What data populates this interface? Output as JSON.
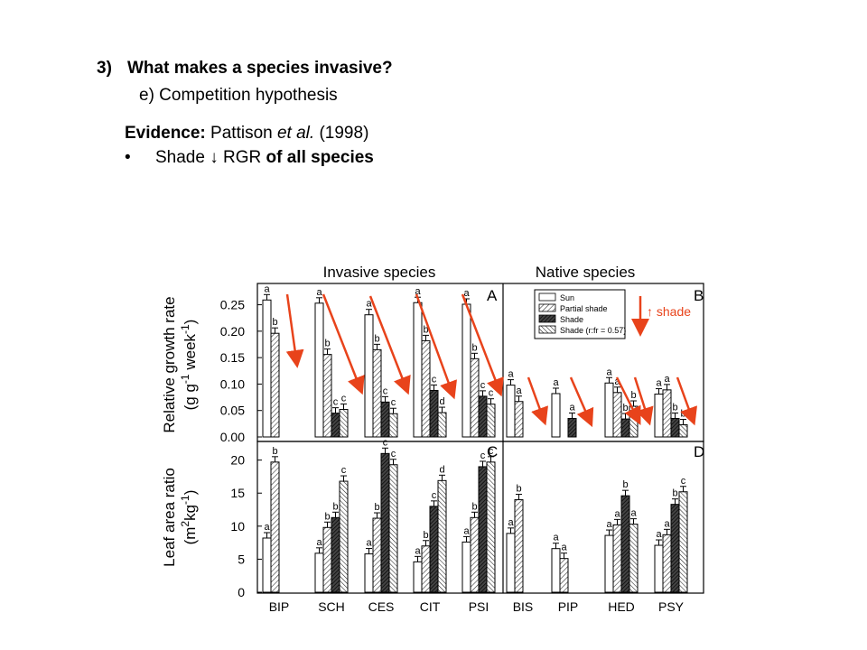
{
  "slide": {
    "heading_number": "3)",
    "heading_text": "What makes a species invasive?",
    "subheading": "e) Competition hypothesis",
    "evidence_label": "Evidence:",
    "evidence_author": "Pattison",
    "evidence_etal": "et al.",
    "evidence_year": "(1998)",
    "bullet_symbol": "•",
    "bullet_pre": "Shade ↓ RGR",
    "bullet_bold": "of all species"
  },
  "figure": {
    "group_invasive": "Invasive species",
    "group_native": "Native species",
    "annotation_shade": "↑ shade",
    "arrow_color": "#e8431b"
  },
  "chart_data": [
    {
      "type": "bar",
      "panel": "A/B",
      "panel_labels": [
        "A",
        "B"
      ],
      "ylabel": "Relative growth rate (g g-1 week-1)",
      "ylabel_line1": "Relative growth rate",
      "ylabel_line2_parts": [
        "(g g",
        "-1",
        " week",
        "-1",
        ")"
      ],
      "ylim": [
        0,
        0.28
      ],
      "yticks": [
        0.0,
        0.05,
        0.1,
        0.15,
        0.2,
        0.25
      ],
      "ytick_labels": [
        "0.00",
        "0.05",
        "0.10",
        "0.15",
        "0.20",
        "0.25"
      ],
      "categories": [
        "BIP",
        "SCH",
        "CES",
        "CIT",
        "PSI",
        "BIS",
        "PIP",
        "HED",
        "PSY"
      ],
      "legend_position": "top-right",
      "series": [
        {
          "name": "Sun",
          "values": [
            0.259,
            0.253,
            0.231,
            0.254,
            0.251,
            0.098,
            0.082,
            0.102,
            0.081
          ]
        },
        {
          "name": "Partial shade",
          "values": [
            0.196,
            0.156,
            0.165,
            0.182,
            0.148,
            0.067,
            null,
            0.084,
            0.089
          ]
        },
        {
          "name": "Shade",
          "values": [
            null,
            0.045,
            0.066,
            0.088,
            0.077,
            null,
            0.035,
            0.034,
            0.035
          ]
        },
        {
          "name": "Shade (r:fr = 0.57)",
          "values": [
            null,
            0.052,
            0.044,
            0.046,
            0.062,
            null,
            null,
            0.058,
            0.023
          ]
        }
      ],
      "letters": [
        [
          "a",
          "b",
          null,
          null
        ],
        [
          "a",
          "b",
          "c",
          "c"
        ],
        [
          "a",
          "b",
          "c",
          "c"
        ],
        [
          "a",
          "b",
          "c",
          "d"
        ],
        [
          "a",
          "b",
          "c",
          "c"
        ],
        [
          "a",
          "a",
          null,
          null
        ],
        [
          "a",
          null,
          "a",
          null
        ],
        [
          "a",
          "a",
          "b",
          "b"
        ],
        [
          "a",
          "a",
          "b",
          "b"
        ]
      ]
    },
    {
      "type": "bar",
      "panel": "C/D",
      "panel_labels": [
        "C",
        "D"
      ],
      "ylabel": "Leaf area ratio (m2kg-1)",
      "ylabel_line1": "Leaf area ratio",
      "ylabel_line2_parts": [
        "(m",
        "2",
        "kg",
        "-1",
        ")"
      ],
      "ylim": [
        0,
        22
      ],
      "yticks": [
        0,
        5,
        10,
        15,
        20
      ],
      "ytick_labels": [
        "0",
        "5",
        "10",
        "15",
        "20"
      ],
      "categories": [
        "BIP",
        "SCH",
        "CES",
        "CIT",
        "PSI",
        "BIS",
        "PIP",
        "HED",
        "PSY"
      ],
      "series": [
        {
          "name": "Sun",
          "values": [
            8.2,
            5.9,
            5.8,
            4.6,
            7.6,
            8.9,
            6.6,
            8.6,
            7.1
          ]
        },
        {
          "name": "Partial shade",
          "values": [
            19.7,
            9.8,
            11.2,
            7.0,
            11.3,
            14.0,
            5.1,
            10.2,
            8.7
          ]
        },
        {
          "name": "Shade",
          "values": [
            null,
            11.3,
            21.0,
            13.0,
            19.0,
            null,
            null,
            14.6,
            13.3
          ]
        },
        {
          "name": "Shade (r:fr = 0.57)",
          "values": [
            null,
            16.8,
            19.3,
            16.9,
            19.7,
            null,
            null,
            10.3,
            15.2
          ]
        }
      ],
      "letters": [
        [
          "a",
          "b",
          null,
          null
        ],
        [
          "a",
          "b",
          "b",
          "c"
        ],
        [
          "a",
          "b",
          "c",
          "c"
        ],
        [
          "a",
          "b",
          "c",
          "d"
        ],
        [
          "a",
          "b",
          "c",
          "c"
        ],
        [
          "a",
          "b",
          null,
          null
        ],
        [
          "a",
          "a",
          null,
          null
        ],
        [
          "a",
          "a",
          "b",
          "a"
        ],
        [
          "a",
          "a",
          "b",
          "c"
        ]
      ]
    }
  ]
}
